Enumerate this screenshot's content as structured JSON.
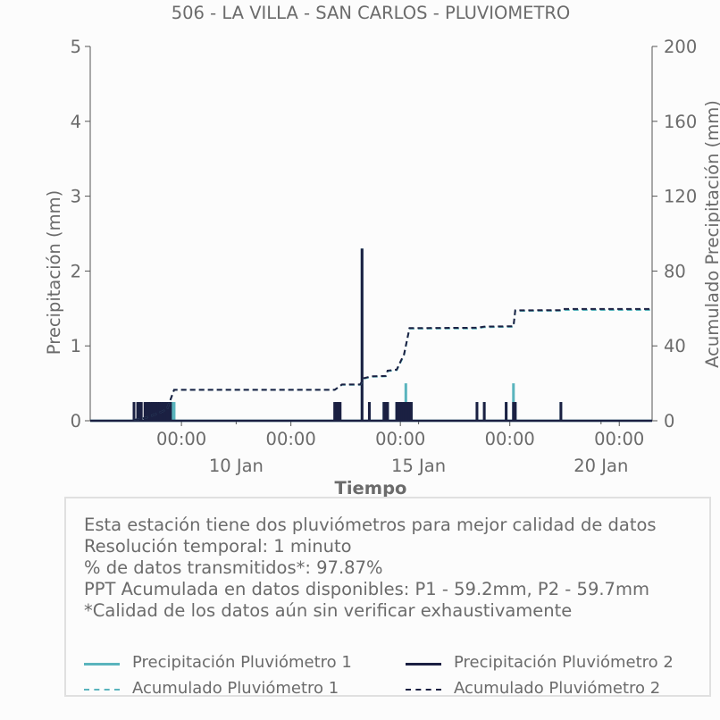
{
  "chart_data": {
    "type": "line",
    "title": "506 - LA VILLA - SAN CARLOS - PLUVIOMETRO",
    "xlabel": "Tiempo",
    "ylabel_left": "Precipitación (mm)",
    "ylabel_right": "Acumulado Precipitación (mm)",
    "ylim_left": [
      0,
      5
    ],
    "ylim_right": [
      0,
      200
    ],
    "yticks_left": [
      "0",
      "1",
      "2",
      "3",
      "4",
      "5"
    ],
    "yticks_right": [
      "0",
      "40",
      "80",
      "120",
      "160",
      "200"
    ],
    "xlim_days": [
      6.0,
      21.4
    ],
    "xtick_major": [
      {
        "day": 8.5,
        "label": "00:00"
      },
      {
        "day": 11.5,
        "label": "00:00"
      },
      {
        "day": 14.5,
        "label": "00:00"
      },
      {
        "day": 17.5,
        "label": "00:00"
      },
      {
        "day": 20.5,
        "label": "00:00"
      }
    ],
    "xtick_dates": [
      {
        "day": 10,
        "label": "10 Jan"
      },
      {
        "day": 15,
        "label": "15 Jan"
      },
      {
        "day": 20,
        "label": "20 Jan"
      }
    ],
    "grid": false,
    "series": [
      {
        "name": "Precipitación Pluviómetro 1",
        "style": "solid-bar",
        "color": "#5ab4bd",
        "axis": "left",
        "points": [
          [
            7.6,
            0.25
          ],
          [
            7.7,
            0.25
          ],
          [
            7.75,
            0.25
          ],
          [
            7.8,
            0.25
          ],
          [
            7.85,
            0.25
          ],
          [
            7.9,
            0.25
          ],
          [
            7.95,
            0.25
          ],
          [
            8.0,
            0.25
          ],
          [
            8.05,
            0.25
          ],
          [
            8.1,
            0.25
          ],
          [
            8.15,
            0.25
          ],
          [
            8.2,
            0.25
          ],
          [
            8.25,
            0.25
          ],
          [
            8.3,
            0.25
          ],
          [
            12.75,
            0.25
          ],
          [
            12.8,
            0.25
          ],
          [
            13.45,
            2.3
          ],
          [
            13.65,
            0.25
          ],
          [
            14.05,
            0.25
          ],
          [
            14.15,
            0.25
          ],
          [
            14.4,
            0.25
          ],
          [
            14.5,
            0.25
          ],
          [
            14.6,
            0.25
          ],
          [
            14.65,
            0.5
          ],
          [
            14.7,
            0.25
          ],
          [
            14.8,
            0.25
          ],
          [
            16.6,
            0.25
          ],
          [
            16.8,
            0.25
          ],
          [
            17.4,
            0.25
          ],
          [
            17.6,
            0.5
          ],
          [
            17.65,
            0.25
          ],
          [
            18.9,
            0.25
          ]
        ]
      },
      {
        "name": "Precipitación Pluviómetro 2",
        "style": "solid-bar",
        "color": "#1b2042",
        "axis": "left",
        "points": [
          [
            7.2,
            0.25
          ],
          [
            7.3,
            0.25
          ],
          [
            7.35,
            0.25
          ],
          [
            7.4,
            0.25
          ],
          [
            7.5,
            0.25
          ],
          [
            7.55,
            0.25
          ],
          [
            7.6,
            0.25
          ],
          [
            7.65,
            0.25
          ],
          [
            7.7,
            0.25
          ],
          [
            7.75,
            0.25
          ],
          [
            7.8,
            0.25
          ],
          [
            7.85,
            0.25
          ],
          [
            7.9,
            0.25
          ],
          [
            7.95,
            0.25
          ],
          [
            8.0,
            0.25
          ],
          [
            8.05,
            0.25
          ],
          [
            8.1,
            0.25
          ],
          [
            8.15,
            0.25
          ],
          [
            8.2,
            0.25
          ],
          [
            12.7,
            0.25
          ],
          [
            12.75,
            0.25
          ],
          [
            12.8,
            0.25
          ],
          [
            12.85,
            0.25
          ],
          [
            13.45,
            2.3
          ],
          [
            13.65,
            0.25
          ],
          [
            14.05,
            0.25
          ],
          [
            14.1,
            0.25
          ],
          [
            14.15,
            0.25
          ],
          [
            14.4,
            0.25
          ],
          [
            14.45,
            0.25
          ],
          [
            14.5,
            0.25
          ],
          [
            14.55,
            0.25
          ],
          [
            14.6,
            0.25
          ],
          [
            14.65,
            0.25
          ],
          [
            14.7,
            0.25
          ],
          [
            14.75,
            0.25
          ],
          [
            14.8,
            0.25
          ],
          [
            16.6,
            0.25
          ],
          [
            16.8,
            0.25
          ],
          [
            17.4,
            0.25
          ],
          [
            17.6,
            0.25
          ],
          [
            17.65,
            0.25
          ],
          [
            18.9,
            0.25
          ]
        ]
      },
      {
        "name": "Acumulado Pluviómetro 1",
        "style": "dashed",
        "color": "#5ab4bd",
        "axis": "right",
        "points": [
          [
            6.0,
            0
          ],
          [
            7.2,
            0
          ],
          [
            7.2,
            0.5
          ],
          [
            7.5,
            1.5
          ],
          [
            7.8,
            3.5
          ],
          [
            8.1,
            6
          ],
          [
            8.3,
            16.5
          ],
          [
            12.7,
            16.5
          ],
          [
            12.9,
            19.2
          ],
          [
            13.4,
            19.2
          ],
          [
            13.5,
            22.5
          ],
          [
            13.7,
            23.5
          ],
          [
            14.1,
            23.7
          ],
          [
            14.15,
            26.5
          ],
          [
            14.4,
            27
          ],
          [
            14.5,
            31
          ],
          [
            14.6,
            35
          ],
          [
            14.75,
            49.2
          ],
          [
            16.6,
            49.3
          ],
          [
            16.8,
            50
          ],
          [
            17.6,
            50.2
          ],
          [
            17.65,
            58.7
          ],
          [
            18.9,
            58.8
          ],
          [
            18.95,
            59.2
          ],
          [
            21.4,
            59.2
          ]
        ]
      },
      {
        "name": "Acumulado Pluviómetro 2",
        "style": "dashed",
        "color": "#1b2042",
        "axis": "right",
        "points": [
          [
            6.0,
            0
          ],
          [
            7.2,
            0
          ],
          [
            7.2,
            0.5
          ],
          [
            7.5,
            1.5
          ],
          [
            7.8,
            3.5
          ],
          [
            8.1,
            6
          ],
          [
            8.3,
            16.5
          ],
          [
            12.7,
            16.5
          ],
          [
            12.9,
            19.4
          ],
          [
            13.4,
            19.4
          ],
          [
            13.5,
            22.7
          ],
          [
            13.7,
            23.7
          ],
          [
            14.1,
            23.9
          ],
          [
            14.15,
            26.8
          ],
          [
            14.4,
            27.3
          ],
          [
            14.5,
            31.5
          ],
          [
            14.6,
            35.5
          ],
          [
            14.75,
            49.5
          ],
          [
            16.6,
            49.7
          ],
          [
            16.8,
            50.3
          ],
          [
            17.6,
            50.5
          ],
          [
            17.65,
            59
          ],
          [
            18.9,
            59.1
          ],
          [
            18.95,
            59.7
          ],
          [
            21.4,
            59.7
          ]
        ]
      }
    ]
  },
  "info": {
    "lines": [
      "Esta estación tiene dos pluviómetros para mejor calidad de datos",
      "Resolución temporal: 1 minuto",
      "% de datos transmitidos*: 97.87%",
      "PPT Acumulada en datos disponibles: P1 - 59.2mm, P2 - 59.7mm",
      "*Calidad de los datos aún sin verificar exhaustivamente"
    ]
  },
  "legend": [
    {
      "label": "Precipitación Pluviómetro 1",
      "color": "#5ab4bd",
      "style": "solid"
    },
    {
      "label": "Precipitación Pluviómetro 2",
      "color": "#1b2042",
      "style": "solid"
    },
    {
      "label": "Acumulado Pluviómetro 1",
      "color": "#5ab4bd",
      "style": "dashed"
    },
    {
      "label": "Acumulado Pluviómetro 2",
      "color": "#1b2042",
      "style": "dashed"
    }
  ]
}
